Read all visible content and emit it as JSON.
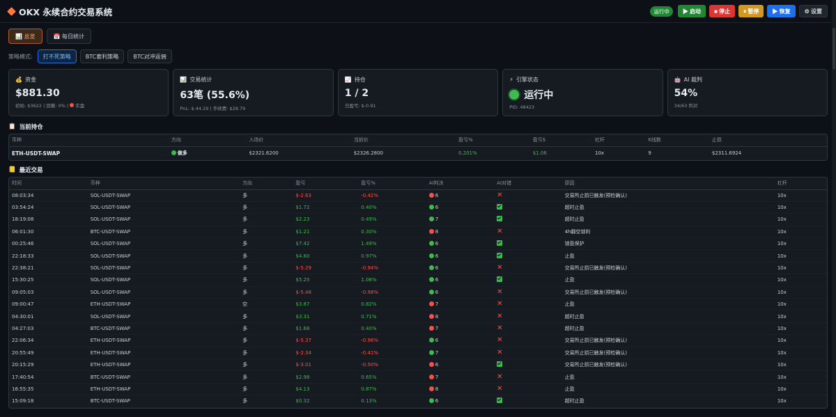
{
  "header": {
    "title": "OKX 永续合约交易系统",
    "status_badge": "运行中",
    "buttons": {
      "start": "▶ 启动",
      "stop": "■ 停止",
      "pause": "⏸ 暂停",
      "resume": "▶ 恢复",
      "settings": "⚙ 设置"
    }
  },
  "tabs": {
    "overview": "📊 总览",
    "daily": "📅 每日统计"
  },
  "strategy": {
    "label": "策略模式:",
    "options": [
      "打不死策略",
      "BTC套利策略",
      "BTC对冲返佣"
    ],
    "selected": "打不死策略"
  },
  "cards": {
    "funds": {
      "icon": "💰",
      "title": "资金",
      "value": "$881.30",
      "sub": "初始: $3622 | 回撤: 0% |",
      "sub_tag": "实盘"
    },
    "trades": {
      "icon": "📊",
      "title": "交易统计",
      "value": "63笔 (55.6%)",
      "sub": "PnL: $-44.29 | 手续费: $28.79"
    },
    "positions": {
      "icon": "📈",
      "title": "持仓",
      "value": "1 / 2",
      "sub": "日盈亏: $-0.91"
    },
    "engine": {
      "icon": "⚡",
      "title": "引擎状态",
      "value": "运行中",
      "sub": "PID: 48423"
    },
    "ai": {
      "icon": "🤖",
      "title": "AI 裁判",
      "value": "54%",
      "sub": "34/63 判对"
    }
  },
  "positions_section": {
    "title": "当前持仓",
    "headers": [
      "币种",
      "方向",
      "入场价",
      "当前价",
      "盈亏%",
      "盈亏$",
      "杠杆",
      "K线数",
      "止损"
    ],
    "rows": [
      {
        "symbol": "ETH-USDT-SWAP",
        "side": "做多",
        "entry": "$2321.6200",
        "current": "$2326.2800",
        "pnl_pct": "0.201%",
        "pnl_usd": "$1.06",
        "leverage": "10x",
        "klines": "9",
        "stop": "$2311.6924"
      }
    ]
  },
  "trades_section": {
    "title": "最近交易",
    "headers": [
      "时间",
      "币种",
      "方向",
      "盈亏",
      "盈亏%",
      "AI判决",
      "AI对错",
      "原因",
      "杠杆"
    ],
    "rows": [
      {
        "time": "08:03:34",
        "symbol": "SOL-USDT-SWAP",
        "side": "多",
        "pnl": "$-2.63",
        "pct": "-0.42%",
        "ai_color": "red",
        "ai": "6",
        "ok": false,
        "reason": "交易所止损已触发(预检确认)",
        "lev": "10x"
      },
      {
        "time": "03:54:24",
        "symbol": "SOL-USDT-SWAP",
        "side": "多",
        "pnl": "$1.72",
        "pct": "0.40%",
        "ai_color": "green",
        "ai": "6",
        "ok": true,
        "reason": "超时止盈",
        "lev": "10x"
      },
      {
        "time": "18:19:08",
        "symbol": "SOL-USDT-SWAP",
        "side": "多",
        "pnl": "$2.23",
        "pct": "0.49%",
        "ai_color": "green",
        "ai": "7",
        "ok": true,
        "reason": "超时止盈",
        "lev": "10x"
      },
      {
        "time": "06:01:30",
        "symbol": "BTC-USDT-SWAP",
        "side": "多",
        "pnl": "$1.21",
        "pct": "0.30%",
        "ai_color": "red",
        "ai": "8",
        "ok": false,
        "reason": "4h翻空锁利",
        "lev": "10x"
      },
      {
        "time": "00:25:46",
        "symbol": "SOL-USDT-SWAP",
        "side": "多",
        "pnl": "$7.42",
        "pct": "1.49%",
        "ai_color": "green",
        "ai": "6",
        "ok": true,
        "reason": "锁盈保护",
        "lev": "10x"
      },
      {
        "time": "22:18:33",
        "symbol": "SOL-USDT-SWAP",
        "side": "多",
        "pnl": "$4.60",
        "pct": "0.97%",
        "ai_color": "green",
        "ai": "6",
        "ok": true,
        "reason": "止盈",
        "lev": "10x"
      },
      {
        "time": "22:38:21",
        "symbol": "SOL-USDT-SWAP",
        "side": "多",
        "pnl": "$-5.29",
        "pct": "-0.94%",
        "ai_color": "green",
        "ai": "6",
        "ok": false,
        "reason": "交易所止损已触发(预检确认)",
        "lev": "10x"
      },
      {
        "time": "15:30:25",
        "symbol": "SOL-USDT-SWAP",
        "side": "多",
        "pnl": "$5.25",
        "pct": "1.08%",
        "ai_color": "green",
        "ai": "6",
        "ok": true,
        "reason": "止盈",
        "lev": "10x"
      },
      {
        "time": "09:05:03",
        "symbol": "SOL-USDT-SWAP",
        "side": "多",
        "pnl": "$-5.48",
        "pct": "-0.98%",
        "ai_color": "green",
        "ai": "6",
        "ok": false,
        "reason": "交易所止损已触发(预检确认)",
        "lev": "10x"
      },
      {
        "time": "09:00:47",
        "symbol": "ETH-USDT-SWAP",
        "side": "空",
        "pnl": "$3.87",
        "pct": "0.82%",
        "ai_color": "red",
        "ai": "7",
        "ok": false,
        "reason": "止盈",
        "lev": "10x"
      },
      {
        "time": "04:30:01",
        "symbol": "SOL-USDT-SWAP",
        "side": "多",
        "pnl": "$3.31",
        "pct": "0.71%",
        "ai_color": "red",
        "ai": "8",
        "ok": false,
        "reason": "超时止盈",
        "lev": "10x"
      },
      {
        "time": "04:27:03",
        "symbol": "BTC-USDT-SWAP",
        "side": "多",
        "pnl": "$1.68",
        "pct": "0.40%",
        "ai_color": "red",
        "ai": "7",
        "ok": false,
        "reason": "超时止盈",
        "lev": "10x"
      },
      {
        "time": "22:06:34",
        "symbol": "ETH-USDT-SWAP",
        "side": "多",
        "pnl": "$-5.37",
        "pct": "-0.96%",
        "ai_color": "green",
        "ai": "6",
        "ok": false,
        "reason": "交易所止损已触发(预检确认)",
        "lev": "10x"
      },
      {
        "time": "20:55:49",
        "symbol": "ETH-USDT-SWAP",
        "side": "多",
        "pnl": "$-2.34",
        "pct": "-0.41%",
        "ai_color": "green",
        "ai": "7",
        "ok": false,
        "reason": "交易所止损已触发(预检确认)",
        "lev": "10x"
      },
      {
        "time": "20:15:29",
        "symbol": "ETH-USDT-SWAP",
        "side": "多",
        "pnl": "$-3.01",
        "pct": "-0.50%",
        "ai_color": "red",
        "ai": "6",
        "ok": true,
        "reason": "交易所止损已触发(预检确认)",
        "lev": "10x"
      },
      {
        "time": "17:40:54",
        "symbol": "BTC-USDT-SWAP",
        "side": "多",
        "pnl": "$2.98",
        "pct": "0.65%",
        "ai_color": "red",
        "ai": "7",
        "ok": false,
        "reason": "止盈",
        "lev": "10x"
      },
      {
        "time": "16:55:35",
        "symbol": "ETH-USDT-SWAP",
        "side": "多",
        "pnl": "$4.13",
        "pct": "0.87%",
        "ai_color": "red",
        "ai": "8",
        "ok": false,
        "reason": "止盈",
        "lev": "10x"
      },
      {
        "time": "15:09:18",
        "symbol": "BTC-USDT-SWAP",
        "side": "多",
        "pnl": "$0.32",
        "pct": "0.13%",
        "ai_color": "green",
        "ai": "6",
        "ok": true,
        "reason": "超时止盈",
        "lev": "10x"
      }
    ]
  },
  "colors": {
    "green": "#3fb950",
    "red": "#f85149",
    "accent": "#1f6feb"
  }
}
